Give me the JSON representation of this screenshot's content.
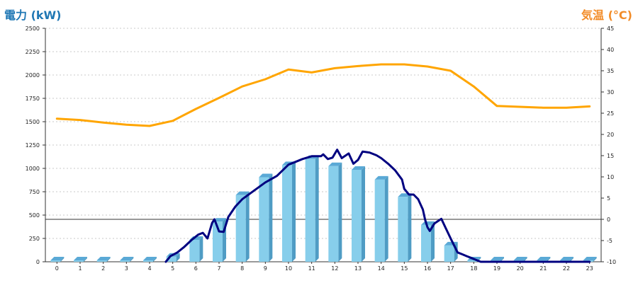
{
  "chart_data": {
    "type": "bar",
    "left_axis_title": "電力 (kW)",
    "right_axis_title": "気温 (°C)",
    "left_ticks": [
      "0",
      "250",
      "500",
      "750",
      "1000",
      "1250",
      "1500",
      "1750",
      "2000",
      "2250",
      "2500"
    ],
    "right_ticks": [
      "-10",
      "-5",
      "0",
      "5",
      "10",
      "15",
      "20",
      "25",
      "30",
      "35",
      "40",
      "45"
    ],
    "x_ticks": [
      "0",
      "1",
      "2",
      "3",
      "4",
      "5",
      "6",
      "7",
      "8",
      "9",
      "10",
      "11",
      "12",
      "13",
      "14",
      "15",
      "16",
      "17",
      "18",
      "19",
      "20",
      "21",
      "22",
      "23"
    ],
    "ylim_left": [
      0,
      2500
    ],
    "ylim_right": [
      -10,
      45
    ],
    "grid": true,
    "colors": {
      "bars": "#87ceeb",
      "bar_side": "#4f9cc4",
      "bar_top": "#5aa9d6",
      "power_line": "#000080",
      "temperature": "#ffa500",
      "left_title": "#1f77b4",
      "right_title": "#f28c28"
    },
    "series": [
      {
        "kind": "bar",
        "axis": "left",
        "x": [
          0,
          1,
          2,
          3,
          4,
          5,
          6,
          7,
          8,
          9,
          10,
          11,
          12,
          13,
          14,
          15,
          16,
          17,
          18,
          19,
          20,
          21,
          22,
          23
        ],
        "values": [
          0,
          0,
          0,
          0,
          0,
          55,
          235,
          430,
          715,
          905,
          1035,
          1100,
          1025,
          985,
          880,
          695,
          395,
          175,
          10,
          0,
          0,
          0,
          0,
          0
        ]
      },
      {
        "kind": "line",
        "axis": "left",
        "x": [
          4.7,
          4.9,
          5.2,
          5.5,
          5.8,
          6.1,
          6.3,
          6.5,
          6.7,
          6.8,
          7.0,
          7.2,
          7.4,
          7.7,
          8.0,
          8.5,
          9.0,
          9.5,
          10.0,
          10.3,
          10.6,
          11.0,
          11.4,
          11.5,
          11.7,
          11.9,
          12.1,
          12.3,
          12.6,
          12.8,
          13.0,
          13.2,
          13.5,
          13.8,
          14.0,
          14.3,
          14.6,
          14.9,
          15.0,
          15.2,
          15.4,
          15.6,
          15.8,
          15.9,
          16.0,
          16.1,
          16.3,
          16.6,
          16.8,
          17.0,
          17.3,
          17.5,
          17.7,
          17.9,
          18.1,
          18.3,
          18.7,
          19.0,
          20.0,
          21.0,
          22.0,
          23.0
        ],
        "values": [
          0,
          60,
          100,
          160,
          230,
          290,
          310,
          250,
          415,
          455,
          325,
          320,
          480,
          590,
          670,
          760,
          850,
          920,
          1040,
          1070,
          1100,
          1130,
          1130,
          1150,
          1100,
          1115,
          1200,
          1110,
          1160,
          1050,
          1090,
          1180,
          1170,
          1140,
          1110,
          1050,
          980,
          880,
          780,
          720,
          720,
          670,
          560,
          450,
          370,
          330,
          410,
          460,
          355,
          250,
          100,
          80,
          60,
          40,
          20,
          0,
          0,
          0,
          0,
          0,
          0,
          0
        ]
      },
      {
        "kind": "line",
        "axis": "right",
        "x": [
          0,
          1,
          2,
          3,
          4,
          5,
          6,
          7,
          8,
          9,
          10,
          11,
          12,
          13,
          14,
          15,
          16,
          17,
          18,
          19,
          20,
          21,
          22,
          23
        ],
        "values": [
          23.7,
          23.4,
          22.8,
          22.3,
          22.0,
          23.2,
          26.0,
          28.6,
          31.3,
          33.0,
          35.3,
          34.6,
          35.6,
          36.1,
          36.5,
          36.5,
          36.0,
          35.0,
          31.3,
          26.7,
          26.5,
          26.3,
          26.3,
          26.6
        ]
      }
    ]
  }
}
